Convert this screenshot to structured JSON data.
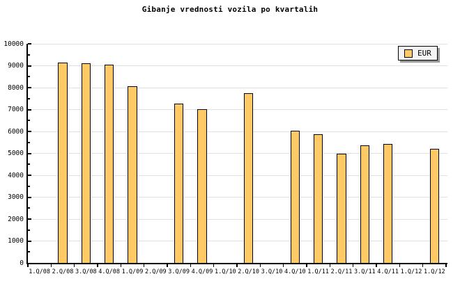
{
  "title": "Gibanje vrednosti vozila po kvartalih",
  "legend": {
    "label": "EUR"
  },
  "colors": {
    "background": "#FFFFFF",
    "bar_fill": "#FFC966",
    "bar_border": "#000000",
    "gridline": "#E0E0E0",
    "axis": "#000000",
    "text": "#000000",
    "legend_bg": "#F4F4F4",
    "legend_shadow": "#999999"
  },
  "chart_data": {
    "type": "bar",
    "title": "Gibanje vrednosti vozila po kvartalih",
    "categories": [
      "1.Q/08",
      "2.Q/08",
      "3.Q/08",
      "4.Q/08",
      "1.Q/09",
      "2.Q/09",
      "3.Q/09",
      "4.Q/09",
      "1.Q/10",
      "2.Q/10",
      "3.Q/10",
      "4.Q/10",
      "1.Q/11",
      "2.Q/11",
      "3.Q/11",
      "4.Q/11",
      "1.Q/12",
      "1.Q/12"
    ],
    "series": [
      {
        "name": "EUR",
        "values": [
          null,
          9150,
          9100,
          9040,
          8050,
          null,
          7260,
          7020,
          null,
          7740,
          null,
          6020,
          5880,
          4970,
          5370,
          5440,
          null,
          5200
        ]
      }
    ],
    "xlabel": "",
    "ylabel": "",
    "ylim": [
      0,
      10000
    ],
    "yticks": [
      0,
      1000,
      2000,
      3000,
      4000,
      5000,
      6000,
      7000,
      8000,
      9000,
      10000
    ],
    "minor_ytick_step": 500,
    "grid": true,
    "legend_position": "top-right"
  }
}
